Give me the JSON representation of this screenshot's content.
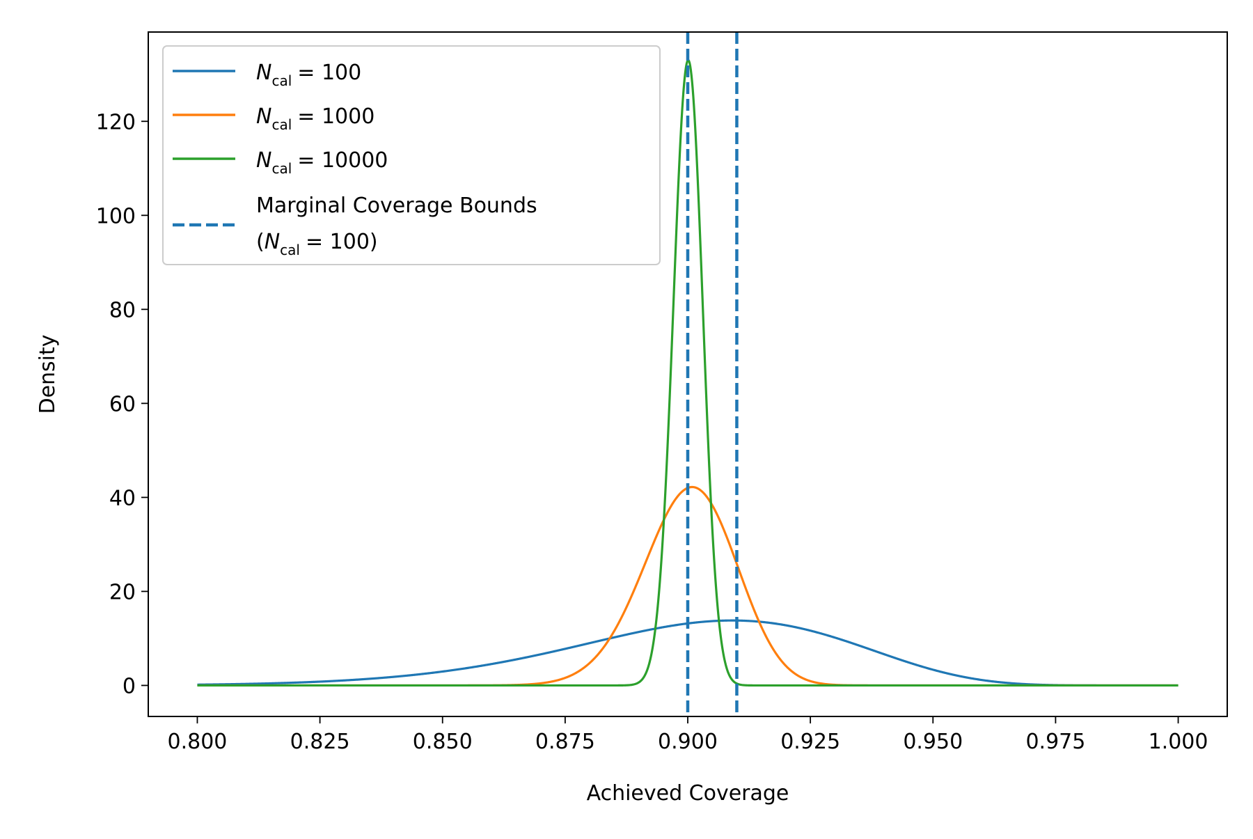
{
  "chart_data": {
    "type": "line",
    "title": "",
    "xlabel": "Achieved Coverage",
    "ylabel": "Density",
    "xlim": [
      0.79,
      1.01
    ],
    "ylim": [
      -6.6,
      139
    ],
    "grid": false,
    "legend_position": "top-left",
    "x_ticks": [
      0.8,
      0.825,
      0.85,
      0.875,
      0.9,
      0.925,
      0.95,
      0.975,
      1.0
    ],
    "x_tick_labels": [
      "0.800",
      "0.825",
      "0.850",
      "0.875",
      "0.900",
      "0.925",
      "0.950",
      "0.975",
      "1.000"
    ],
    "y_ticks": [
      0,
      20,
      40,
      60,
      80,
      100,
      120
    ],
    "y_tick_labels": [
      "0",
      "20",
      "40",
      "60",
      "80",
      "100",
      "120"
    ],
    "x_range": [
      0.8,
      1.0
    ],
    "series": [
      {
        "name": "N_cal = 100",
        "legend_var": "N",
        "legend_sub": "cal",
        "legend_rest": "= 100",
        "color": "#1f77b4",
        "distribution": "beta",
        "params": {
          "a": 91,
          "b": 10
        },
        "peak_x": 0.909,
        "peak_density": 14
      },
      {
        "name": "N_cal = 1000",
        "legend_var": "N",
        "legend_sub": "cal",
        "legend_rest": "= 1000",
        "color": "#ff7f0e",
        "distribution": "beta",
        "params": {
          "a": 901,
          "b": 100
        },
        "peak_x": 0.901,
        "peak_density": 42.5
      },
      {
        "name": "N_cal = 10000",
        "legend_var": "N",
        "legend_sub": "cal",
        "legend_rest": "= 10000",
        "color": "#2ca02c",
        "distribution": "beta",
        "params": {
          "a": 9001,
          "b": 1000
        },
        "peak_x": 0.9,
        "peak_density": 133
      }
    ],
    "vlines": {
      "name": "Marginal Coverage Bounds (N_cal = 100)",
      "legend_line1": "Marginal Coverage Bounds",
      "legend_line2_open": "(",
      "legend_line2_var": "N",
      "legend_line2_sub": "cal",
      "legend_line2_rest": "= 100)",
      "color": "#1f77b4",
      "style": "dashed",
      "x": [
        0.9,
        0.91
      ]
    }
  }
}
